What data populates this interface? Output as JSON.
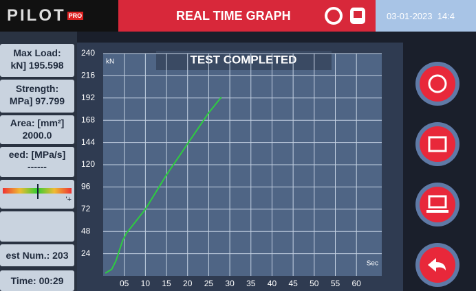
{
  "header": {
    "logo": "PILOT",
    "logo_badge": "PRO",
    "title": "REAL TIME GRAPH",
    "datetime": "03-01-2023  14:4"
  },
  "left_panel": {
    "max_load_label": "Max Load:",
    "max_load_value": "kN] 195.598",
    "strength_label": "Strength:",
    "strength_value": "MPa] 97.799",
    "area_label": "Area: [mm²]",
    "area_value": "2000.0",
    "speed_label": "eed: [MPa/s]",
    "speed_value": "------",
    "gauge_mark": "'+",
    "test_num": "est Num.: 203",
    "time": "Time: 00:29"
  },
  "chart_data": {
    "type": "line",
    "title": "TEST COMPLETED",
    "y_label": "kN",
    "x_label": "Sec",
    "x": [
      0.5,
      2,
      3,
      4.6,
      5.5,
      10,
      15,
      20.5,
      25,
      28
    ],
    "values": [
      3,
      7,
      16,
      38,
      46,
      72,
      109,
      146,
      176,
      193
    ],
    "color": "#2ecc40",
    "xlim": [
      0,
      66
    ],
    "ylim": [
      0,
      240
    ],
    "xticks": [
      {
        "value": 5,
        "label": "05"
      },
      10,
      15,
      20,
      25,
      30,
      35,
      40,
      45,
      50,
      55,
      60
    ],
    "yticks": [
      24,
      48,
      72,
      96,
      120,
      144,
      168,
      192,
      216,
      240
    ],
    "grid": true
  }
}
